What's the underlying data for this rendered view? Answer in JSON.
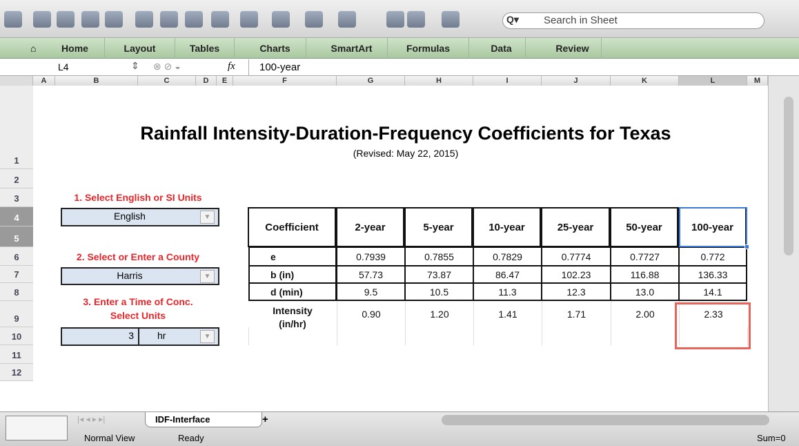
{
  "toolbar": {
    "search_placeholder": "Search in Sheet"
  },
  "ribbon": {
    "tabs": [
      "Home",
      "Layout",
      "Tables",
      "Charts",
      "SmartArt",
      "Formulas",
      "Data",
      "Review"
    ]
  },
  "formula_bar": {
    "cell": "L4",
    "fx": "fx",
    "formula": "100-year"
  },
  "columns": [
    "A",
    "B",
    "C",
    "D",
    "E",
    "F",
    "G",
    "H",
    "I",
    "J",
    "K",
    "L",
    "M"
  ],
  "rows": [
    "1",
    "2",
    "3",
    "4",
    "5",
    "6",
    "7",
    "8",
    "9",
    "10",
    "11",
    "12"
  ],
  "sheet": {
    "title": "Rainfall Intensity-Duration-Frequency Coefficients for Texas",
    "subtitle": "(Revised: May 22, 2015)",
    "step1": "1. Select English or SI Units",
    "units": "English",
    "step2": "2. Select or Enter a County",
    "county": "Harris",
    "step3_line1": "3. Enter a Time of Conc.",
    "step3_line2": "Select Units",
    "time": "3",
    "time_unit": "hr"
  },
  "table": {
    "header": [
      "Coefficient",
      "2-year",
      "5-year",
      "10-year",
      "25-year",
      "50-year",
      "100-year"
    ],
    "rows": [
      [
        "e",
        "0.7939",
        "0.7855",
        "0.7829",
        "0.7774",
        "0.7727",
        "0.772"
      ],
      [
        "b (in)",
        "57.73",
        "73.87",
        "86.47",
        "102.23",
        "116.88",
        "136.33"
      ],
      [
        "d (min)",
        "9.5",
        "10.5",
        "11.3",
        "12.3",
        "13.0",
        "14.1"
      ]
    ],
    "intensity_label": [
      "Intensity",
      "(in/hr)"
    ],
    "intensity": [
      "0.90",
      "1.20",
      "1.41",
      "1.71",
      "2.00",
      "2.33"
    ]
  },
  "status": {
    "sheet_tab": "IDF-Interface",
    "add_tab": "+",
    "view": "Normal View",
    "state": "Ready",
    "sum": "Sum=0"
  }
}
